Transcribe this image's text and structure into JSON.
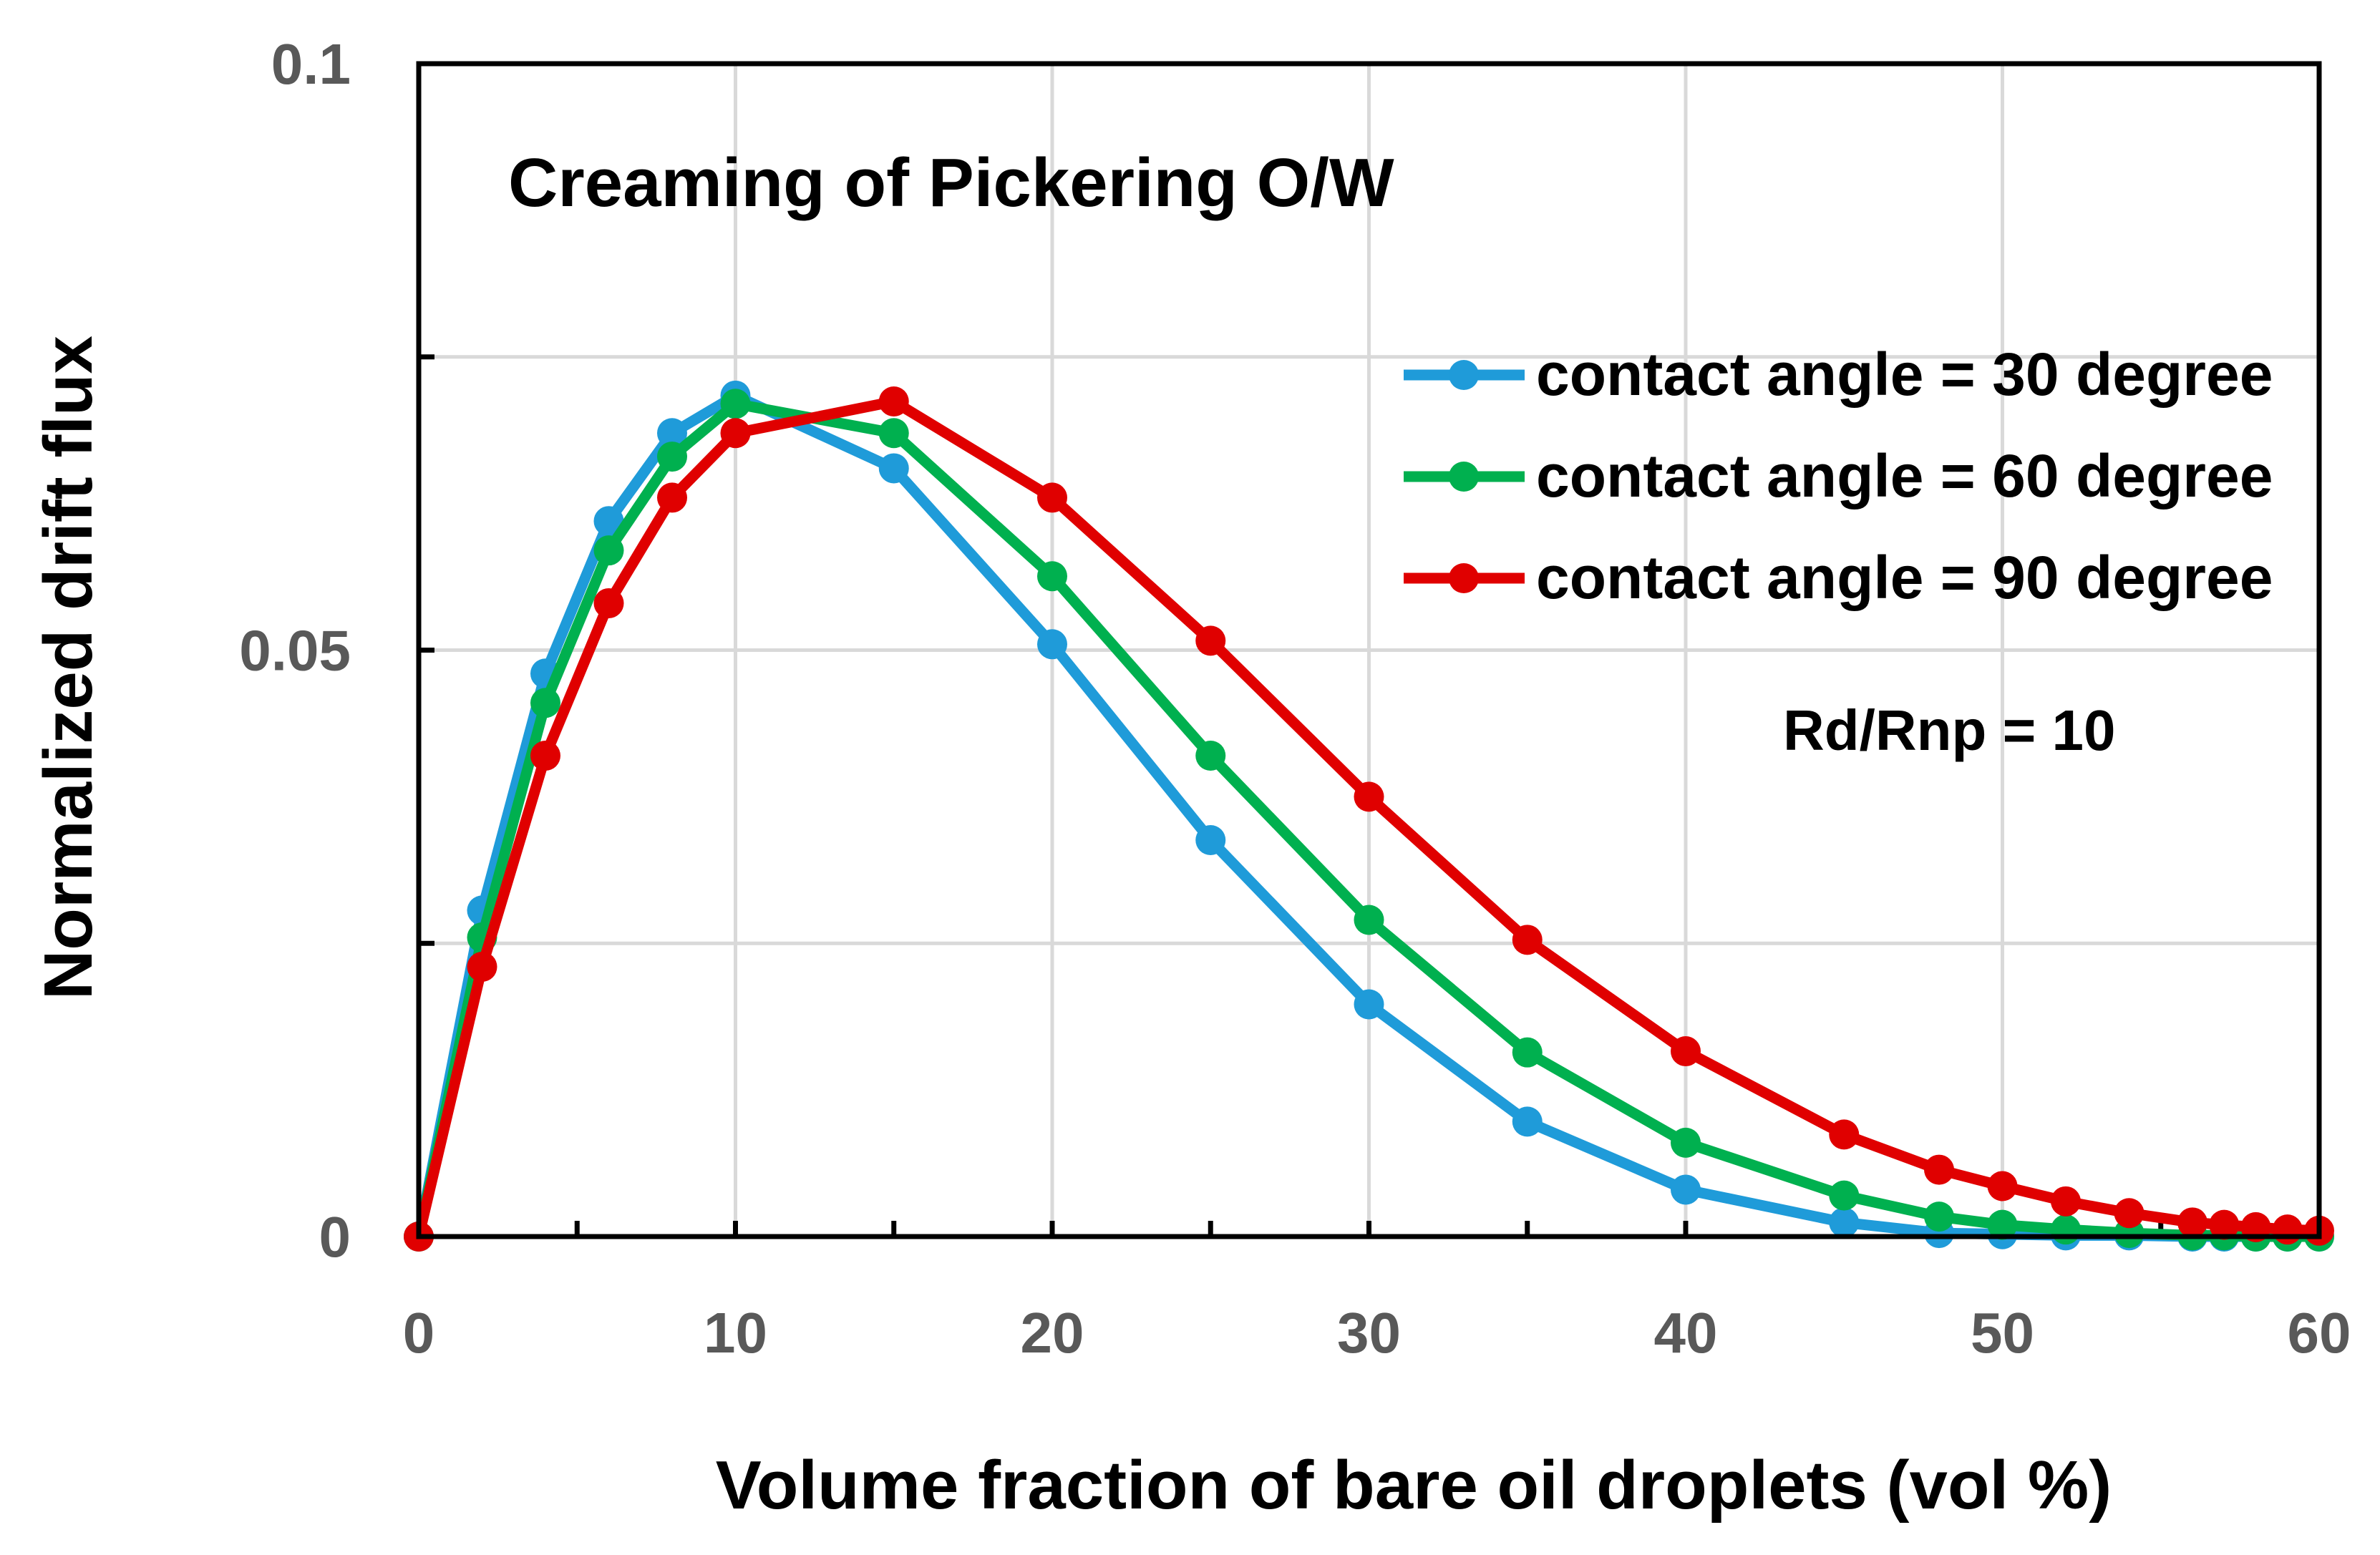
{
  "chart_data": {
    "type": "line",
    "title": "Creaming of Pickering O/W",
    "annotation": "Rd/Rnp = 10",
    "xlabel": "Volume fraction of bare oil droplets (vol %)",
    "ylabel": "Normalized drift flux",
    "xlim": [
      0,
      60
    ],
    "ylim": [
      0,
      0.1
    ],
    "xticks": [
      "0",
      "10",
      "20",
      "30",
      "40",
      "50",
      "60"
    ],
    "yticks": [
      "0",
      "0.05",
      "0.1"
    ],
    "grid": true,
    "legend_position": "top-right",
    "x": [
      0,
      2,
      4,
      6,
      8,
      10,
      15,
      20,
      25,
      30,
      35,
      40,
      45,
      48,
      50,
      52,
      54,
      56,
      57,
      58,
      59,
      60
    ],
    "series": [
      {
        "name": "contact angle = 30 degree",
        "color": "#1f9bd9",
        "values": [
          0,
          0.0278,
          0.048,
          0.061,
          0.0685,
          0.0717,
          0.0655,
          0.0505,
          0.0338,
          0.0198,
          0.0098,
          0.004,
          0.0012,
          0.0003,
          0.0002,
          0.0001,
          0.0001,
          0,
          0,
          0,
          0,
          0
        ]
      },
      {
        "name": "contact angle = 60 degree",
        "color": "#00b04f",
        "values": [
          0,
          0.0255,
          0.0455,
          0.0585,
          0.0665,
          0.071,
          0.0685,
          0.0563,
          0.041,
          0.027,
          0.0157,
          0.008,
          0.0035,
          0.0017,
          0.001,
          0.0006,
          0.0003,
          0.0001,
          0.0001,
          0,
          0,
          0
        ]
      },
      {
        "name": "contact angle = 90 degree",
        "color": "#e00000",
        "values": [
          0,
          0.023,
          0.041,
          0.054,
          0.063,
          0.0685,
          0.0712,
          0.063,
          0.0508,
          0.0375,
          0.0253,
          0.0158,
          0.0087,
          0.0057,
          0.0043,
          0.003,
          0.002,
          0.0012,
          0.001,
          0.0008,
          0.0006,
          0.0005
        ]
      }
    ]
  }
}
